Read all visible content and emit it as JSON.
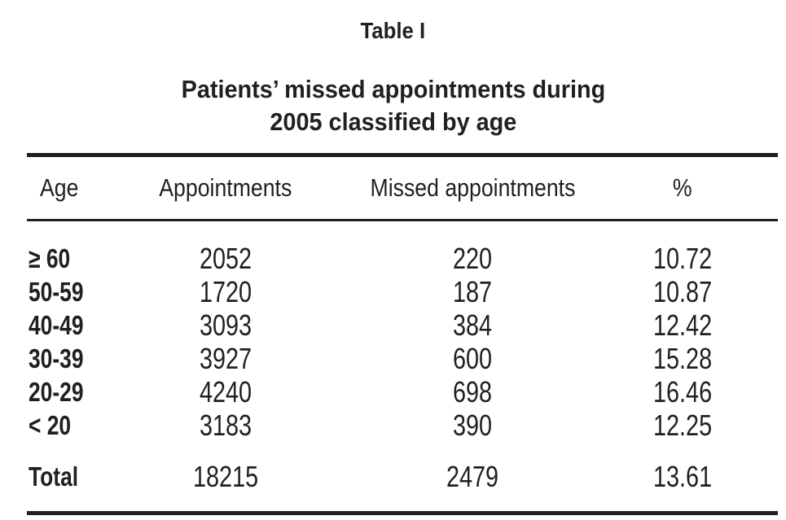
{
  "table_label": "Table I",
  "title": {
    "line1": "Patients’ missed appointments during",
    "line2": "2005 classified by age"
  },
  "columns": {
    "age": "Age",
    "appointments": "Appointments",
    "missed": "Missed appointments",
    "percent": "%"
  },
  "rows": [
    {
      "age": "≥ 60",
      "appointments": "2052",
      "missed": "220",
      "percent": "10.72"
    },
    {
      "age": "50-59",
      "appointments": "1720",
      "missed": "187",
      "percent": "10.87"
    },
    {
      "age": "40-49",
      "appointments": "3093",
      "missed": "384",
      "percent": "12.42"
    },
    {
      "age": "30-39",
      "appointments": "3927",
      "missed": "600",
      "percent": "15.28"
    },
    {
      "age": "20-29",
      "appointments": "4240",
      "missed": "698",
      "percent": "16.46"
    },
    {
      "age": "< 20",
      "appointments": "3183",
      "missed": "390",
      "percent": "12.25"
    }
  ],
  "total": {
    "age": "Total",
    "appointments": "18215",
    "missed": "2479",
    "percent": "13.61"
  },
  "colors": {
    "text": "#231f20",
    "rule": "#231f20",
    "background": "#ffffff"
  }
}
